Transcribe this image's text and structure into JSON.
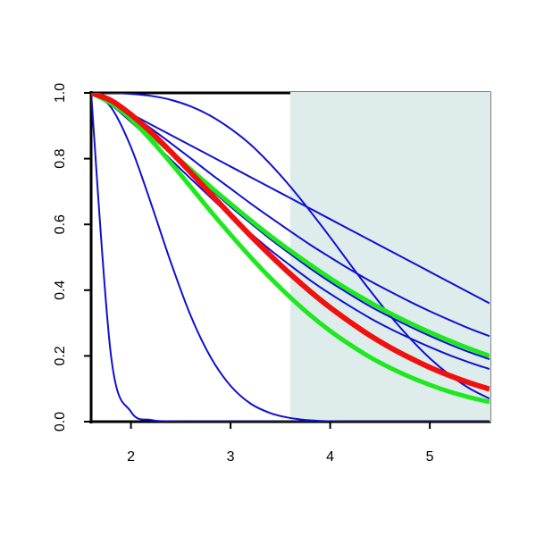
{
  "chart_data": {
    "type": "line",
    "x": [
      1.6,
      1.8,
      2.0,
      2.2,
      2.4,
      2.6,
      2.8,
      3.0,
      3.2,
      3.4,
      3.6,
      3.8,
      4.0,
      4.2,
      4.4,
      4.6,
      4.8,
      5.0,
      5.2,
      5.4,
      5.6
    ],
    "xlim": [
      1.6,
      5.6
    ],
    "ylim": [
      0,
      1
    ],
    "xticks": [
      2,
      3,
      4,
      5
    ],
    "yticks": [
      {
        "value": 0,
        "label": "0.0"
      },
      {
        "value": 0.2,
        "label": "0.2"
      },
      {
        "value": 0.4,
        "label": "0.4"
      },
      {
        "value": 0.6,
        "label": "0.6"
      },
      {
        "value": 0.8,
        "label": "0.8"
      },
      {
        "value": 1,
        "label": "1.0"
      }
    ],
    "shade_xlim": [
      3.6,
      5.6
    ],
    "shade_color": "#deeceb",
    "series": [
      {
        "color": "#1010d0",
        "line_width": 2,
        "values": [
          1,
          0.2,
          0.03,
          0.005,
          0.001,
          0,
          0,
          0,
          0,
          0,
          0,
          0,
          0,
          0,
          0,
          0,
          0,
          0,
          0,
          0,
          0
        ]
      },
      {
        "color": "#1010d0",
        "line_width": 2,
        "values": [
          1,
          0.956,
          0.835,
          0.665,
          0.485,
          0.322,
          0.196,
          0.109,
          0.055,
          0.026,
          0.011,
          0.004,
          0.001,
          0,
          0,
          0,
          0,
          0,
          0,
          0,
          0
        ]
      },
      {
        "color": "#1010d0",
        "line_width": 2,
        "values": [
          1,
          1.0,
          0.997,
          0.991,
          0.979,
          0.959,
          0.93,
          0.891,
          0.843,
          0.783,
          0.715,
          0.64,
          0.561,
          0.479,
          0.399,
          0.323,
          0.254,
          0.193,
          0.142,
          0.101,
          0.07
        ]
      },
      {
        "color": "#1010d0",
        "line_width": 2,
        "values": [
          1,
          0.968,
          0.936,
          0.904,
          0.872,
          0.84,
          0.808,
          0.776,
          0.744,
          0.712,
          0.68,
          0.648,
          0.616,
          0.584,
          0.552,
          0.52,
          0.488,
          0.456,
          0.424,
          0.392,
          0.36
        ]
      },
      {
        "color": "#1010d0",
        "line_width": 2,
        "values": [
          1,
          0.973,
          0.935,
          0.892,
          0.847,
          0.801,
          0.754,
          0.709,
          0.664,
          0.621,
          0.579,
          0.538,
          0.5,
          0.463,
          0.428,
          0.396,
          0.365,
          0.336,
          0.309,
          0.283,
          0.26
        ]
      },
      {
        "color": "#1010d0",
        "line_width": 2,
        "values": [
          1,
          0.967,
          0.92,
          0.868,
          0.815,
          0.76,
          0.707,
          0.654,
          0.604,
          0.555,
          0.51,
          0.466,
          0.425,
          0.387,
          0.351,
          0.319,
          0.289,
          0.261,
          0.235,
          0.211,
          0.19
        ]
      },
      {
        "color": "#1010d0",
        "line_width": 2,
        "values": [
          1,
          0.963,
          0.912,
          0.856,
          0.797,
          0.739,
          0.682,
          0.626,
          0.573,
          0.522,
          0.475,
          0.43,
          0.389,
          0.351,
          0.315,
          0.283,
          0.254,
          0.227,
          0.202,
          0.18,
          0.16
        ]
      },
      {
        "color": "#1ee81e",
        "line_width": 5,
        "values": [
          1,
          0.968,
          0.922,
          0.872,
          0.82,
          0.767,
          0.714,
          0.663,
          0.613,
          0.565,
          0.52,
          0.477,
          0.436,
          0.398,
          0.363,
          0.33,
          0.3,
          0.272,
          0.246,
          0.222,
          0.2
        ]
      },
      {
        "color": "#1ee81e",
        "line_width": 5,
        "values": [
          1,
          0.972,
          0.92,
          0.857,
          0.787,
          0.714,
          0.64,
          0.569,
          0.501,
          0.437,
          0.378,
          0.324,
          0.276,
          0.234,
          0.196,
          0.164,
          0.136,
          0.112,
          0.091,
          0.074,
          0.06
        ]
      },
      {
        "color": "#f01010",
        "line_width": 6,
        "values": [
          1,
          0.977,
          0.934,
          0.881,
          0.821,
          0.758,
          0.693,
          0.629,
          0.566,
          0.506,
          0.449,
          0.396,
          0.347,
          0.303,
          0.262,
          0.226,
          0.194,
          0.165,
          0.14,
          0.118,
          0.099
        ]
      }
    ]
  }
}
